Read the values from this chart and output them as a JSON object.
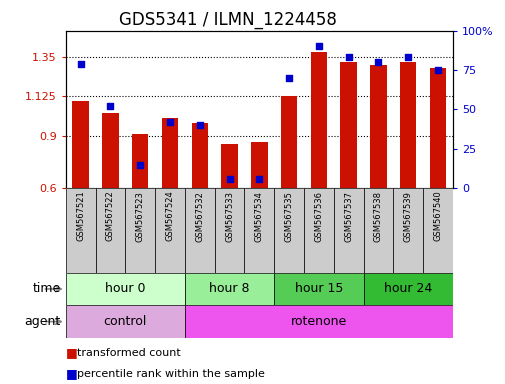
{
  "title": "GDS5341 / ILMN_1224458",
  "samples": [
    "GSM567521",
    "GSM567522",
    "GSM567523",
    "GSM567524",
    "GSM567532",
    "GSM567533",
    "GSM567534",
    "GSM567535",
    "GSM567536",
    "GSM567537",
    "GSM567538",
    "GSM567539",
    "GSM567540"
  ],
  "transformed_count": [
    1.1,
    1.03,
    0.91,
    1.0,
    0.975,
    0.855,
    0.865,
    1.125,
    1.38,
    1.32,
    1.305,
    1.32,
    1.285
  ],
  "percentile_rank": [
    79,
    52,
    15,
    42,
    40,
    6,
    6,
    70,
    90,
    83,
    80,
    83,
    75
  ],
  "ylim_left": [
    0.6,
    1.5
  ],
  "ylim_right": [
    0,
    100
  ],
  "yticks_left": [
    0.6,
    0.9,
    1.125,
    1.35
  ],
  "yticks_right": [
    0,
    25,
    50,
    75,
    100
  ],
  "bar_color": "#cc1100",
  "dot_color": "#0000cc",
  "bar_bottom": 0.6,
  "bar_width": 0.55,
  "time_groups": [
    {
      "label": "hour 0",
      "start": 0,
      "end": 4,
      "color": "#ccffcc"
    },
    {
      "label": "hour 8",
      "start": 4,
      "end": 7,
      "color": "#99ee99"
    },
    {
      "label": "hour 15",
      "start": 7,
      "end": 10,
      "color": "#55cc55"
    },
    {
      "label": "hour 24",
      "start": 10,
      "end": 13,
      "color": "#33bb33"
    }
  ],
  "agent_groups": [
    {
      "label": "control",
      "start": 0,
      "end": 4,
      "color": "#ddaadd"
    },
    {
      "label": "rotenone",
      "start": 4,
      "end": 13,
      "color": "#ee55ee"
    }
  ],
  "grid_color": "#000000",
  "sample_bg_color": "#cccccc",
  "title_fontsize": 12,
  "tick_fontsize": 8,
  "legend_fontsize": 8,
  "row_label_fontsize": 9,
  "sample_fontsize": 6,
  "left_axis_color": "#cc1100",
  "right_axis_color": "#0000cc",
  "dot_size": 18
}
